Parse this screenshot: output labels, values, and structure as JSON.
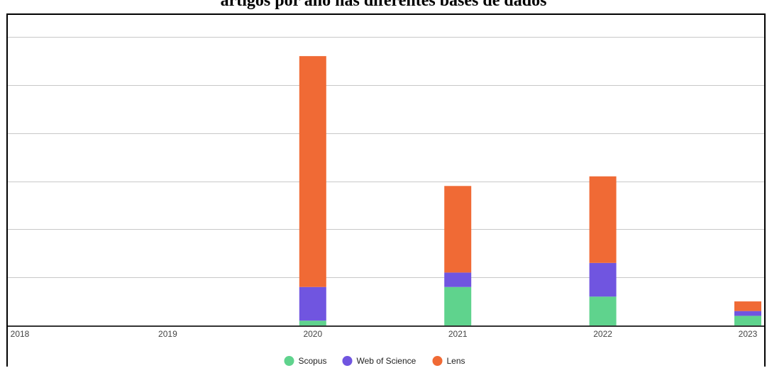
{
  "chart_data": {
    "type": "bar",
    "stacked": true,
    "title": "artigos por ano nas diferentes bases de dados",
    "xlabel": "",
    "ylabel": "",
    "categories": [
      "2018",
      "2019",
      "2020",
      "2021",
      "2022",
      "2023"
    ],
    "series": [
      {
        "name": "Scopus",
        "color": "#5fd38d",
        "values": [
          0,
          0,
          2,
          16,
          12,
          4
        ]
      },
      {
        "name": "Web of Science",
        "color": "#7055e0",
        "values": [
          0,
          0,
          14,
          6,
          14,
          2
        ]
      },
      {
        "name": "Lens",
        "color": "#f06a35",
        "values": [
          0,
          0,
          96,
          36,
          36,
          4
        ]
      }
    ],
    "ylim": [
      0,
      120
    ],
    "y_tick_step": 20,
    "y_tick_labels_visible": false,
    "grid": true,
    "legend_position": "bottom"
  }
}
